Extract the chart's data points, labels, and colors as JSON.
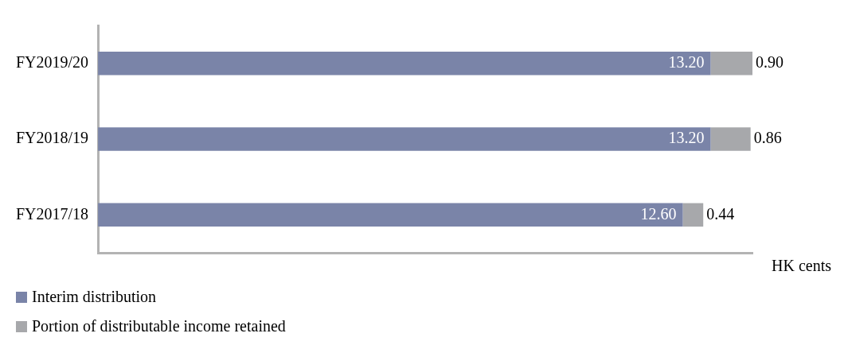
{
  "chart_data": {
    "type": "bar",
    "orientation": "horizontal",
    "stacked": true,
    "xlabel": "HK cents",
    "categories": [
      "FY2019/20",
      "FY2018/19",
      "FY2017/18"
    ],
    "series": [
      {
        "name": "Interim distribution",
        "color": "#7a84a8",
        "values": [
          13.2,
          13.2,
          12.6
        ],
        "value_labels": [
          "13.20",
          "13.20",
          "12.60"
        ]
      },
      {
        "name": "Portion of distributable income retained",
        "color": "#a7a8ab",
        "values": [
          0.9,
          0.86,
          0.44
        ],
        "value_labels": [
          "0.90",
          "0.86",
          "0.44"
        ]
      }
    ],
    "xlim": [
      0,
      14.1
    ],
    "tick_labels": "y",
    "legend": "bottom left",
    "data_labels": true
  }
}
